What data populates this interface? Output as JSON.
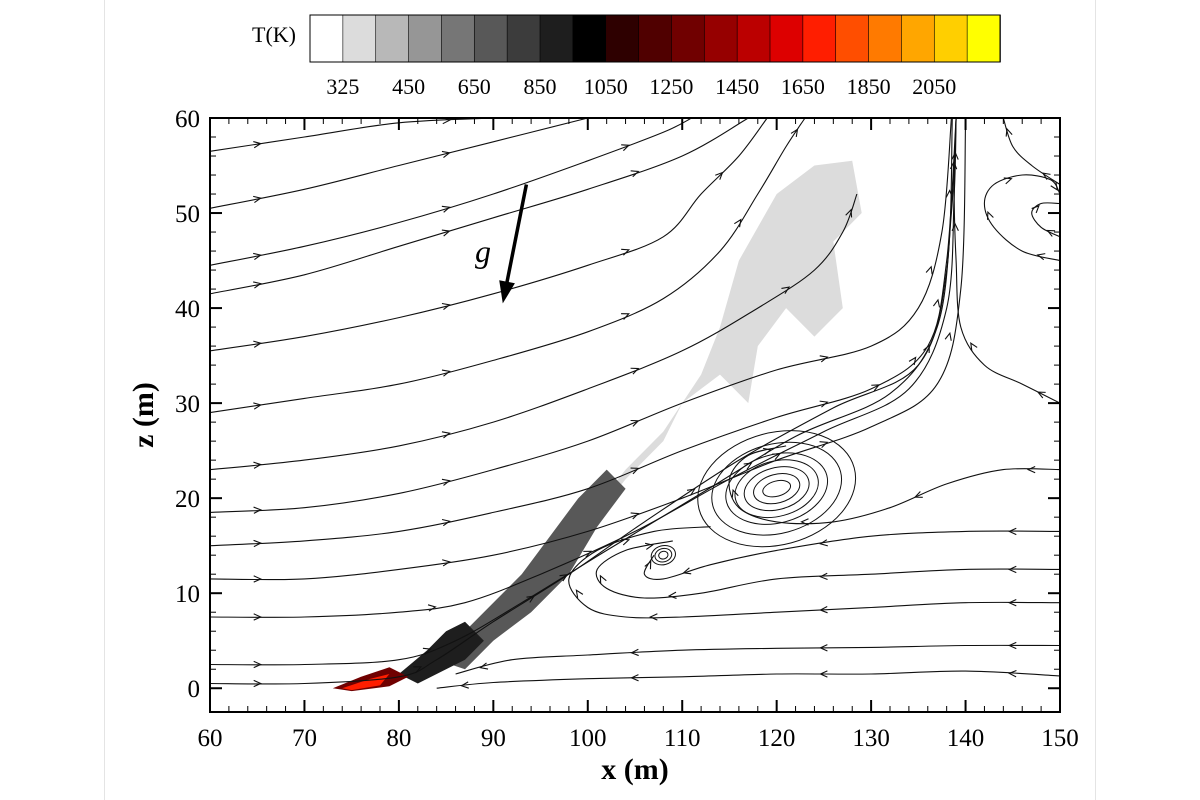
{
  "colorbar": {
    "title": "T(K)",
    "labels": [
      "325",
      "450",
      "650",
      "850",
      "1050",
      "1250",
      "1450",
      "1650",
      "1850",
      "2050"
    ],
    "colors": [
      "#ffffff",
      "#dcdcdc",
      "#b8b8b8",
      "#969696",
      "#767676",
      "#585858",
      "#3c3c3c",
      "#1e1e1e",
      "#000000",
      "#2e0000",
      "#500000",
      "#700000",
      "#960000",
      "#bb0000",
      "#dd0000",
      "#ff1e00",
      "#ff4e00",
      "#ff7a00",
      "#ffa600",
      "#ffcf00",
      "#ffff00"
    ]
  },
  "gravity_label": "g",
  "chart_data": {
    "type": "contour",
    "xlabel": "x (m)",
    "ylabel": "z (m)",
    "xlim": [
      60,
      150
    ],
    "ylim": [
      -2.5,
      60
    ],
    "xticks": [
      60,
      70,
      80,
      90,
      100,
      110,
      120,
      130,
      140,
      150
    ],
    "yticks": [
      0,
      10,
      20,
      30,
      40,
      50,
      60
    ],
    "xtick_labels": [
      "60",
      "70",
      "80",
      "90",
      "100",
      "110",
      "120",
      "130",
      "140",
      "150"
    ],
    "ytick_labels": [
      "0",
      "10",
      "20",
      "30",
      "40",
      "50",
      "60"
    ],
    "gravity_arrow": {
      "from": [
        93.5,
        53
      ],
      "to": [
        91,
        40.5
      ]
    },
    "temperature_regions": [
      {
        "T": 325,
        "points": [
          [
            85,
            3
          ],
          [
            90,
            8
          ],
          [
            95,
            13
          ],
          [
            100,
            18
          ],
          [
            104,
            23
          ],
          [
            108,
            27
          ],
          [
            112,
            33
          ],
          [
            114,
            38
          ],
          [
            116,
            45
          ],
          [
            120,
            52
          ],
          [
            124,
            55
          ],
          [
            128,
            55.5
          ],
          [
            129,
            50
          ],
          [
            126,
            47
          ],
          [
            127,
            40
          ],
          [
            124,
            37
          ],
          [
            121,
            40
          ],
          [
            118,
            36
          ],
          [
            117,
            30
          ],
          [
            114,
            33
          ],
          [
            110,
            30
          ],
          [
            108,
            26
          ],
          [
            104,
            22
          ],
          [
            100,
            17
          ],
          [
            97,
            13
          ],
          [
            92,
            7
          ],
          [
            88,
            3
          ]
        ]
      },
      {
        "T": 650,
        "points": [
          [
            84,
            3
          ],
          [
            88,
            7
          ],
          [
            93,
            12
          ],
          [
            96,
            16
          ],
          [
            99,
            20
          ],
          [
            102,
            23
          ],
          [
            104,
            21
          ],
          [
            101,
            17
          ],
          [
            98,
            12
          ],
          [
            94,
            8
          ],
          [
            90,
            5
          ],
          [
            87,
            2
          ]
        ]
      },
      {
        "T": 850,
        "points": [
          [
            80,
            1.5
          ],
          [
            83,
            4
          ],
          [
            85,
            6
          ],
          [
            87,
            7
          ],
          [
            89,
            5
          ],
          [
            87,
            3
          ],
          [
            85,
            2
          ],
          [
            82,
            0.5
          ]
        ]
      },
      {
        "T": 1250,
        "points": [
          [
            73,
            0
          ],
          [
            76,
            1.2
          ],
          [
            79,
            2.2
          ],
          [
            81,
            1.2
          ],
          [
            79,
            0.2
          ],
          [
            75,
            -0.3
          ]
        ]
      },
      {
        "T": 1650,
        "points": [
          [
            74,
            0
          ],
          [
            77,
            1
          ],
          [
            79,
            1.5
          ],
          [
            78,
            0.3
          ],
          [
            75,
            -0.2
          ]
        ]
      }
    ],
    "streamlines": [
      [
        [
          60,
          56.5
        ],
        [
          70,
          58
        ],
        [
          80,
          59.5
        ],
        [
          90,
          60
        ]
      ],
      [
        [
          60,
          50.5
        ],
        [
          70,
          52.5
        ],
        [
          80,
          55
        ],
        [
          90,
          57.5
        ],
        [
          100,
          60
        ]
      ],
      [
        [
          60,
          44.5
        ],
        [
          70,
          46.5
        ],
        [
          80,
          49
        ],
        [
          90,
          52
        ],
        [
          100,
          55.5
        ],
        [
          108,
          58.5
        ],
        [
          111,
          60
        ]
      ],
      [
        [
          60,
          41.5
        ],
        [
          70,
          43.5
        ],
        [
          80,
          46.5
        ],
        [
          90,
          49.5
        ],
        [
          100,
          52.5
        ],
        [
          110,
          56
        ],
        [
          117,
          60
        ]
      ],
      [
        [
          60,
          35.5
        ],
        [
          70,
          37
        ],
        [
          80,
          39
        ],
        [
          90,
          41.5
        ],
        [
          100,
          44.5
        ],
        [
          108,
          47.5
        ],
        [
          112,
          52
        ],
        [
          116,
          56
        ],
        [
          119,
          60
        ]
      ],
      [
        [
          60,
          29
        ],
        [
          70,
          30.5
        ],
        [
          80,
          32
        ],
        [
          90,
          34.5
        ],
        [
          100,
          37.5
        ],
        [
          108,
          41
        ],
        [
          114,
          46
        ],
        [
          118,
          52
        ],
        [
          121,
          57
        ],
        [
          123,
          60
        ]
      ],
      [
        [
          60,
          23
        ],
        [
          70,
          24
        ],
        [
          80,
          25.5
        ],
        [
          90,
          28
        ],
        [
          100,
          31.5
        ],
        [
          110,
          35.5
        ],
        [
          118,
          40
        ],
        [
          124,
          44
        ],
        [
          127,
          48
        ],
        [
          128.5,
          52
        ]
      ],
      [
        [
          60,
          18.5
        ],
        [
          70,
          19
        ],
        [
          80,
          20.5
        ],
        [
          90,
          23
        ],
        [
          100,
          26
        ],
        [
          110,
          30
        ],
        [
          120,
          33.5
        ],
        [
          130,
          36
        ],
        [
          135,
          40
        ],
        [
          137.5,
          48
        ],
        [
          138.5,
          60
        ]
      ],
      [
        [
          60,
          15
        ],
        [
          70,
          15.5
        ],
        [
          80,
          16.5
        ],
        [
          90,
          18.5
        ],
        [
          100,
          21
        ],
        [
          110,
          25
        ],
        [
          120,
          28.5
        ],
        [
          130,
          31.5
        ],
        [
          136,
          36
        ],
        [
          138,
          45
        ],
        [
          139,
          60
        ]
      ],
      [
        [
          60,
          11.5
        ],
        [
          70,
          11.5
        ],
        [
          80,
          12.5
        ],
        [
          90,
          14
        ],
        [
          100,
          16.5
        ],
        [
          110,
          20
        ],
        [
          120,
          24
        ],
        [
          130,
          27.5
        ],
        [
          137,
          32
        ],
        [
          139.5,
          42
        ],
        [
          140,
          60
        ]
      ],
      [
        [
          60,
          7.5
        ],
        [
          70,
          7.5
        ],
        [
          80,
          8
        ],
        [
          87,
          9
        ],
        [
          95,
          12
        ],
        [
          105,
          16.5
        ],
        [
          115,
          22
        ],
        [
          125,
          27
        ],
        [
          134,
          31.5
        ],
        [
          138,
          40
        ],
        [
          138.8,
          52
        ],
        [
          139,
          60
        ]
      ],
      [
        [
          60,
          2.5
        ],
        [
          70,
          2.5
        ],
        [
          80,
          3
        ],
        [
          86,
          5
        ],
        [
          93,
          9
        ],
        [
          102,
          14.5
        ],
        [
          112,
          20.5
        ],
        [
          122,
          26.5
        ],
        [
          132,
          31
        ],
        [
          137,
          38
        ],
        [
          138.5,
          50
        ],
        [
          139,
          60
        ]
      ],
      [
        [
          60,
          0.5
        ],
        [
          70,
          0.5
        ],
        [
          80,
          1.2
        ],
        [
          84,
          3
        ],
        [
          90,
          7
        ],
        [
          98,
          12
        ],
        [
          106,
          17.5
        ],
        [
          116,
          24
        ],
        [
          126,
          29.5
        ],
        [
          135,
          34
        ],
        [
          138,
          44
        ],
        [
          138.6,
          60
        ]
      ],
      [
        [
          150,
          1.3
        ],
        [
          140,
          1.8
        ],
        [
          130,
          1.5
        ],
        [
          120,
          1.5
        ],
        [
          110,
          1.2
        ],
        [
          100,
          1
        ],
        [
          90,
          0.6
        ],
        [
          84,
          0
        ]
      ],
      [
        [
          150,
          4.5
        ],
        [
          140,
          4.5
        ],
        [
          130,
          4.3
        ],
        [
          120,
          4.2
        ],
        [
          110,
          4
        ],
        [
          100,
          3.5
        ],
        [
          92,
          3
        ],
        [
          86,
          1.5
        ]
      ],
      [
        [
          150,
          9
        ],
        [
          140,
          9
        ],
        [
          130,
          8.5
        ],
        [
          120,
          8
        ],
        [
          110,
          7.5
        ],
        [
          104,
          7.5
        ],
        [
          100,
          8.5
        ],
        [
          98,
          11.5
        ],
        [
          101,
          14.5
        ],
        [
          107,
          16.5
        ],
        [
          113,
          17
        ]
      ],
      [
        [
          150,
          12.5
        ],
        [
          140,
          12.5
        ],
        [
          130,
          12
        ],
        [
          120,
          11.5
        ],
        [
          112,
          10
        ],
        [
          106,
          9.5
        ],
        [
          102,
          10.5
        ],
        [
          101,
          12.5
        ],
        [
          104,
          14.5
        ],
        [
          109,
          15.5
        ]
      ],
      [
        [
          150,
          16.5
        ],
        [
          140,
          16.5
        ],
        [
          130,
          16
        ],
        [
          120,
          14.5
        ],
        [
          113,
          13
        ],
        [
          108,
          11.5
        ],
        [
          106,
          12
        ],
        [
          107,
          14
        ]
      ],
      [
        [
          150,
          23
        ],
        [
          144,
          23
        ],
        [
          138,
          21.5
        ],
        [
          132,
          19
        ],
        [
          126,
          17.5
        ],
        [
          120,
          17.5
        ],
        [
          116,
          19
        ],
        [
          115,
          22
        ],
        [
          117,
          24.5
        ],
        [
          121,
          25.5
        ]
      ],
      [
        [
          150,
          30
        ],
        [
          146,
          32
        ],
        [
          142,
          34
        ],
        [
          139.5,
          38
        ],
        [
          139,
          45
        ],
        [
          138.8,
          52
        ],
        [
          139,
          60
        ]
      ],
      [
        [
          150,
          53
        ],
        [
          147,
          55
        ],
        [
          145,
          57
        ],
        [
          144,
          60
        ]
      ],
      [
        [
          150,
          45
        ],
        [
          146,
          46
        ],
        [
          143,
          48.5
        ],
        [
          142,
          51
        ],
        [
          143,
          53
        ],
        [
          146,
          54
        ],
        [
          149,
          53.5
        ],
        [
          150,
          52
        ]
      ],
      [
        [
          150,
          47.5
        ],
        [
          148,
          48.5
        ],
        [
          147,
          50
        ],
        [
          148,
          51
        ],
        [
          150,
          51
        ]
      ]
    ],
    "vortices": [
      {
        "center": [
          120,
          21
        ],
        "rx": [
          1.5,
          2.5,
          3.5,
          4.5,
          5.5,
          7,
          8.5
        ],
        "rz": [
          0.8,
          1.5,
          2.2,
          2.9,
          3.6,
          4.7,
          5.9
        ]
      },
      {
        "center": [
          108,
          14
        ],
        "rx": [
          0.5,
          0.9,
          1.3
        ],
        "rz": [
          0.4,
          0.7,
          1.0
        ]
      }
    ]
  }
}
